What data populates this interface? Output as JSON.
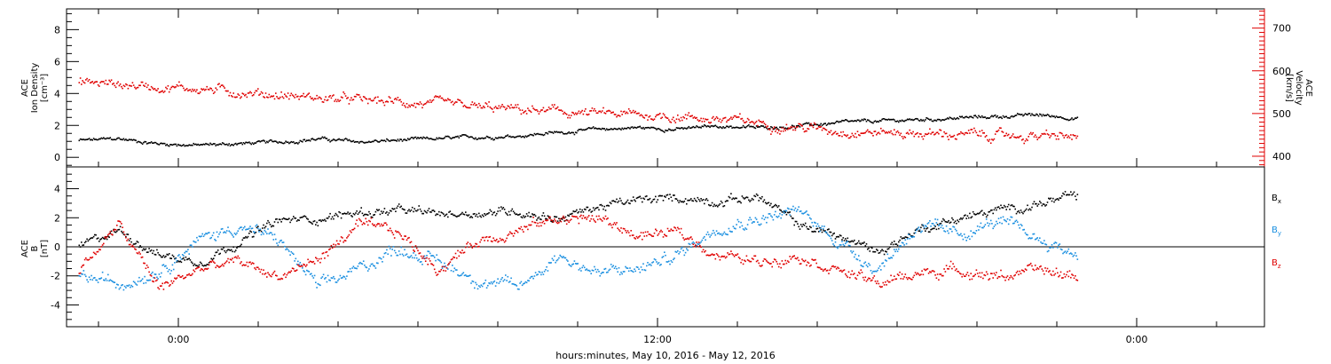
{
  "chart_data": [
    {
      "type": "scatter",
      "panel": "top",
      "left_axis": {
        "label_line1": "ACE",
        "label_line2": "Ion Density",
        "label_units": "[cm⁻³]",
        "ylim": [
          -0.6,
          9.3
        ],
        "ticks": [
          0,
          2,
          4,
          6,
          8
        ],
        "color": "#000000"
      },
      "right_axis": {
        "label_line1": "ACE",
        "label_line2": "Velocity",
        "label_units": "[km/s]",
        "ylim": [
          375,
          745
        ],
        "ticks": [
          400,
          500,
          600,
          700
        ],
        "color": "#e00000"
      },
      "series": [
        {
          "axis": "left",
          "color": "#000000",
          "x": [
            -2.5,
            -1.5,
            -0.5,
            0.5,
            1.5,
            2.5,
            3.5,
            4.5,
            5.5,
            6.5,
            7.5,
            8.5,
            9.5,
            10.5,
            11.5,
            12.5,
            13.5,
            14.5,
            15.5,
            16.5,
            17.5,
            18.5,
            19.5,
            20.5,
            21.5,
            22.5
          ],
          "y": [
            1.1,
            1.2,
            0.9,
            0.8,
            0.9,
            1.0,
            1.2,
            1.0,
            1.1,
            1.2,
            1.3,
            1.4,
            1.6,
            1.8,
            1.9,
            1.8,
            2.0,
            1.9,
            2.0,
            2.2,
            2.3,
            2.4,
            2.5,
            2.6,
            2.7,
            2.5
          ],
          "jitter": 0.18
        },
        {
          "axis": "right",
          "color": "#e00000",
          "x": [
            -2.5,
            -1.5,
            -0.5,
            0.5,
            1.5,
            2.5,
            3.5,
            4.5,
            5.5,
            6.5,
            7.5,
            8.5,
            9.5,
            10.5,
            11.5,
            12.5,
            13.5,
            14.5,
            15.5,
            16.5,
            17.5,
            18.5,
            19.5,
            20.5,
            21.5,
            22.5
          ],
          "y": [
            575,
            570,
            565,
            560,
            552,
            545,
            538,
            532,
            528,
            522,
            515,
            510,
            505,
            500,
            498,
            495,
            488,
            480,
            470,
            462,
            458,
            455,
            452,
            450,
            448,
            446
          ],
          "jitter": 18
        }
      ]
    },
    {
      "type": "scatter",
      "panel": "bottom",
      "left_axis": {
        "label_line1": "ACE",
        "label_line2": "B",
        "label_units": "[nT]",
        "ylim": [
          -5.5,
          5.5
        ],
        "ticks": [
          -4,
          -2,
          0,
          2,
          4
        ]
      },
      "zero_line": true,
      "series": [
        {
          "name": "Bx",
          "name_main": "B",
          "name_sub": "x",
          "color": "#000000",
          "x": [
            -2.5,
            -1.5,
            -0.5,
            0.5,
            1.5,
            2.5,
            3.5,
            4.5,
            5.5,
            6.5,
            7.5,
            8.5,
            9.5,
            10.5,
            11.5,
            12.5,
            13.5,
            14.5,
            15.5,
            16.5,
            17.5,
            18.5,
            19.5,
            20.5,
            21.5,
            22.5
          ],
          "y": [
            0.0,
            1.2,
            -0.5,
            -1.0,
            0.4,
            1.8,
            2.0,
            2.4,
            2.5,
            2.3,
            2.4,
            2.5,
            2.0,
            2.8,
            3.2,
            3.4,
            3.2,
            3.5,
            1.6,
            0.8,
            -0.3,
            1.2,
            2.0,
            2.5,
            3.0,
            3.5
          ],
          "jitter": 0.5
        },
        {
          "name": "By",
          "name_main": "B",
          "name_sub": "y",
          "color": "#1a8fe0",
          "x": [
            -2.5,
            -1.5,
            -0.5,
            0.5,
            1.5,
            2.5,
            3.5,
            4.5,
            5.5,
            6.5,
            7.5,
            8.5,
            9.5,
            10.5,
            11.5,
            12.5,
            13.5,
            14.5,
            15.5,
            16.5,
            17.5,
            18.5,
            19.5,
            20.5,
            21.5,
            22.5
          ],
          "y": [
            -2.0,
            -2.5,
            -1.5,
            0.5,
            1.5,
            0.5,
            -2.8,
            -1.5,
            0.0,
            -1.0,
            -2.2,
            -2.8,
            -0.5,
            -1.8,
            -1.5,
            -0.5,
            1.5,
            2.0,
            2.5,
            0.5,
            -1.5,
            1.5,
            0.8,
            1.8,
            0.6,
            -0.5
          ],
          "jitter": 0.7
        },
        {
          "name": "Bz",
          "name_main": "B",
          "name_sub": "z",
          "color": "#e00000",
          "x": [
            -2.5,
            -1.5,
            -0.5,
            0.5,
            1.5,
            2.5,
            3.5,
            4.5,
            5.5,
            6.5,
            7.5,
            8.5,
            9.5,
            10.5,
            11.5,
            12.5,
            13.5,
            14.5,
            15.5,
            16.5,
            17.5,
            18.5,
            19.5,
            20.5,
            21.5,
            22.5
          ],
          "y": [
            -1.5,
            1.5,
            -2.8,
            -1.5,
            -1.0,
            -2.0,
            -0.8,
            1.5,
            1.0,
            -1.5,
            0.5,
            1.2,
            2.0,
            2.0,
            0.8,
            1.0,
            -0.5,
            -1.0,
            -0.5,
            -1.5,
            -2.5,
            -1.8,
            -1.5,
            -2.0,
            -1.6,
            -2.0
          ],
          "jitter": 0.6
        }
      ]
    }
  ],
  "x_axis": {
    "range_hours": [
      -2.8,
      27.2
    ],
    "tick_labels": [
      {
        "h": 0,
        "label": "0:00"
      },
      {
        "h": 12,
        "label": "12:00"
      },
      {
        "h": 24,
        "label": "0:00"
      }
    ],
    "minor_step_hours": 2,
    "title": "hours:minutes, May 10, 2016 - May 12, 2016"
  },
  "legend": {
    "placement": "right"
  },
  "colors": {
    "black": "#000000",
    "red": "#e00000",
    "blue": "#1a8fe0"
  }
}
